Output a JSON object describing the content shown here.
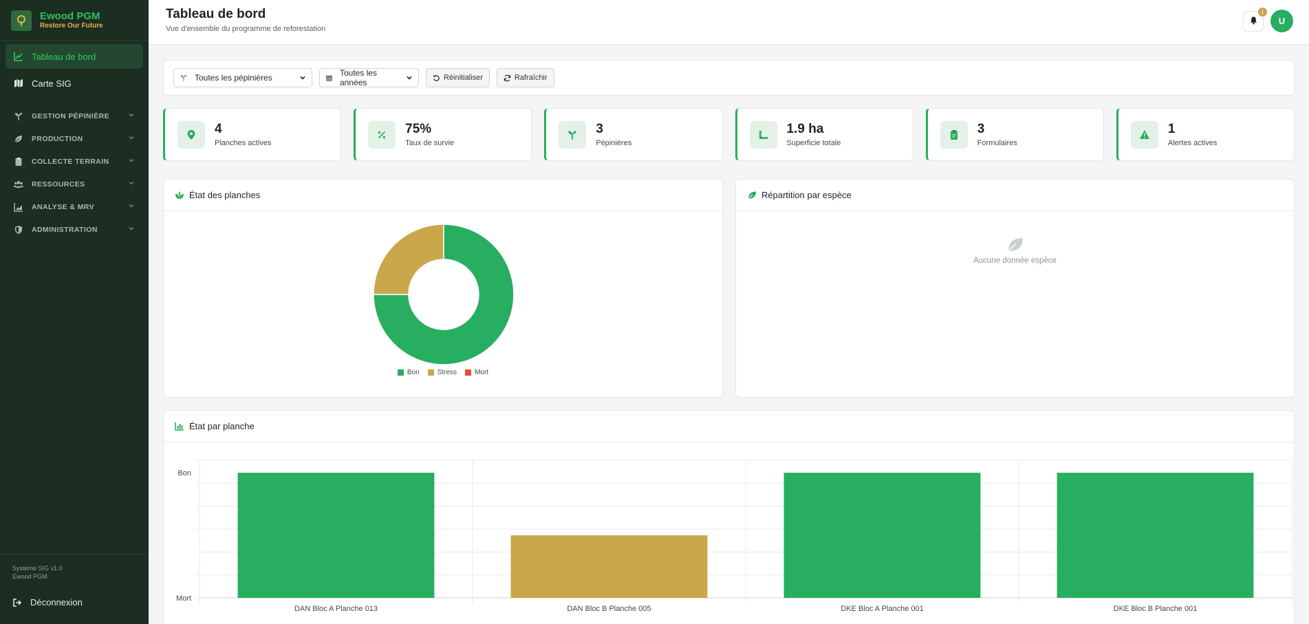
{
  "sidebar": {
    "brand_name": "Ewood PGM",
    "brand_tagline": "Restore Our Future",
    "items": [
      {
        "label": "Tableau de bord"
      },
      {
        "label": "Carte SIG"
      }
    ],
    "groups": [
      {
        "label": "GESTION PÉPINIÈRE"
      },
      {
        "label": "PRODUCTION"
      },
      {
        "label": "COLLECTE TERRAIN"
      },
      {
        "label": "RESSOURCES"
      },
      {
        "label": "ANALYSE & MRV"
      },
      {
        "label": "ADMINISTRATION"
      }
    ],
    "version": "Système SIG v1.0",
    "version_app": "Ewood PGM",
    "logout": "Déconnexion"
  },
  "header": {
    "title": "Tableau de bord",
    "subtitle": "Vue d'ensemble du programme de reforestation",
    "notification_count": "1",
    "avatar_initial": "U"
  },
  "filters": {
    "nursery_select": "Toutes les pépinières",
    "year_select": "Toutes les années",
    "reset_label": "Réinitialiser",
    "refresh_label": "Rafraîchir"
  },
  "stats": [
    {
      "value": "4",
      "label": "Planches actives",
      "icon": "map-pin-icon"
    },
    {
      "value": "75%",
      "label": "Taux de survie",
      "icon": "percent-icon"
    },
    {
      "value": "3",
      "label": "Pépinières",
      "icon": "seedling-icon"
    },
    {
      "value": "1.9 ha",
      "label": "Superficie totale",
      "icon": "ruler-icon"
    },
    {
      "value": "3",
      "label": "Formulaires",
      "icon": "clipboard-icon"
    },
    {
      "value": "1",
      "label": "Alertes actives",
      "icon": "warning-icon"
    }
  ],
  "cards": {
    "donut_title": "État des planches",
    "species_title": "Répartition par espèce",
    "species_empty": "Aucune donnée espèce",
    "bars_title": "État par planche"
  },
  "colors": {
    "accent": "#27ae60",
    "stress": "#c9a74a",
    "dead": "#e74c3c",
    "sidebar": "#1c2d21"
  },
  "chart_data": [
    {
      "type": "pie",
      "title": "État des planches",
      "categories": [
        "Bon",
        "Stress",
        "Mort"
      ],
      "values": [
        3,
        1,
        0
      ],
      "colors": [
        "#27ae60",
        "#c9a74a",
        "#e74c3c"
      ],
      "legend": "bottom"
    },
    {
      "type": "bar",
      "title": "État par planche",
      "categories": [
        "DAN Bloc A Planche 013",
        "DAN Bloc B Planche 005",
        "DKE Bloc A Planche 001",
        "DKE Bloc B Planche 001"
      ],
      "values": [
        2,
        1,
        2,
        2
      ],
      "value_labels": [
        "Bon",
        "Stress",
        "Bon",
        "Bon"
      ],
      "colors": [
        "#27ae60",
        "#c9a74a",
        "#27ae60",
        "#27ae60"
      ],
      "ytick_labels": [
        "Mort",
        "Bon"
      ],
      "ylim": [
        0,
        2.2
      ],
      "grid": true
    }
  ]
}
